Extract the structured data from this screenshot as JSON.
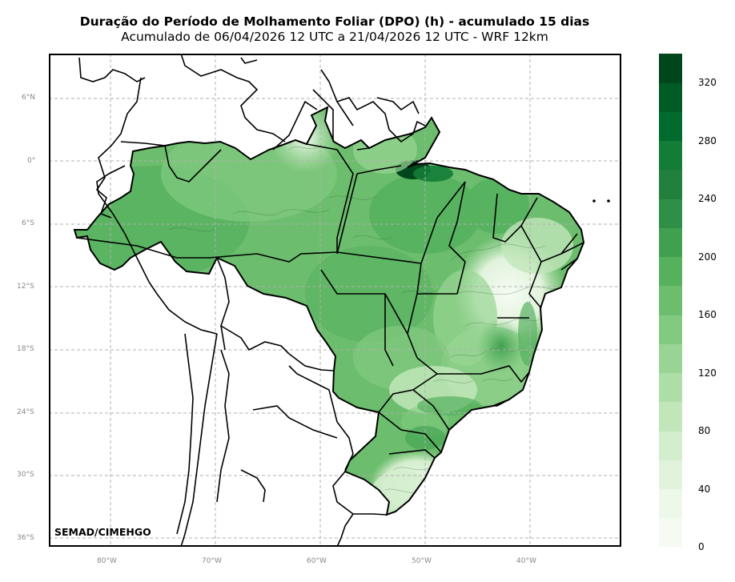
{
  "title": {
    "main": "Duração do Período de Molhamento Foliar (DPO) (h) - acumulado 15 dias",
    "sub": "Acumulado de 06/04/2026 12 UTC a 21/04/2026 12 UTC - WRF 12km"
  },
  "credit": "SEMAD/CIMEHGO",
  "axes": {
    "lon_ticks": [
      "80°W",
      "70°W",
      "60°W",
      "50°W",
      "40°W"
    ],
    "lat_ticks": [
      "6°N",
      "0°",
      "6°S",
      "12°S",
      "18°S",
      "24°S",
      "30°S",
      "36°S"
    ],
    "grid": "dashed"
  },
  "colorbar": {
    "min": 0,
    "max": 340,
    "step": 20,
    "labels": [
      "0",
      "40",
      "80",
      "120",
      "160",
      "200",
      "240",
      "280",
      "320"
    ],
    "colors": [
      "#f5fbf3",
      "#edf8ea",
      "#e1f3dc",
      "#d3eecd",
      "#c1e6ba",
      "#addea7",
      "#98d594",
      "#81ca80",
      "#6cbd6d",
      "#56b15f",
      "#40a050",
      "#2f8f46",
      "#22803e",
      "#137c37",
      "#006b2c",
      "#005b24",
      "#00461c"
    ]
  },
  "map_note_regions": [
    "Brasil",
    "América do Sul"
  ]
}
